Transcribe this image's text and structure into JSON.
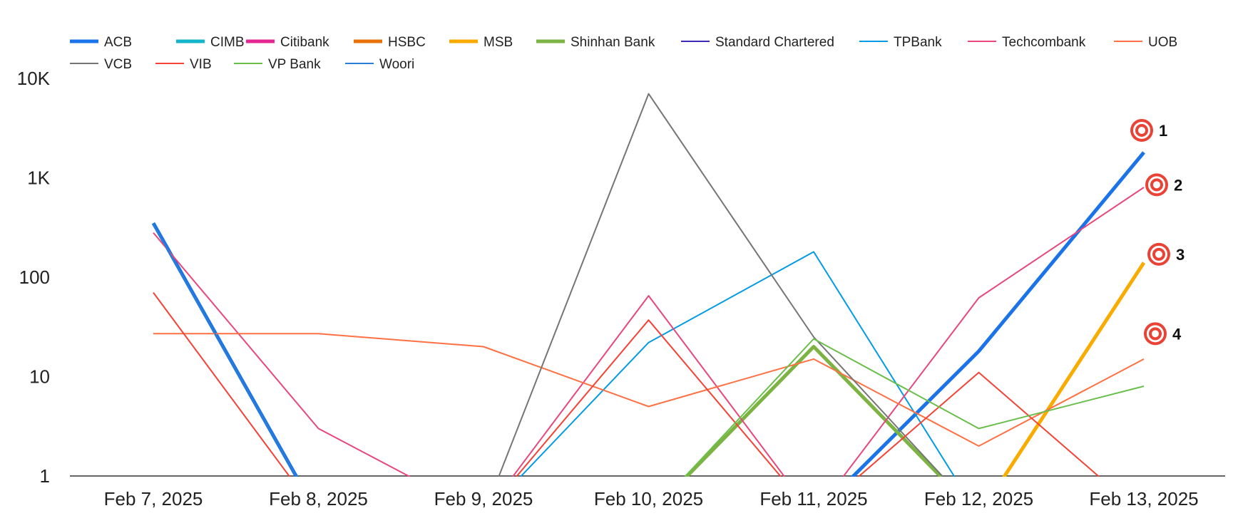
{
  "chart_data": {
    "type": "line",
    "title": "",
    "xlabel": "",
    "ylabel": "",
    "y_scale": "log",
    "ylim": [
      1,
      10000
    ],
    "y_ticks": [
      {
        "value": 1,
        "label": "1"
      },
      {
        "value": 10,
        "label": "10"
      },
      {
        "value": 100,
        "label": "100"
      },
      {
        "value": 1000,
        "label": "1K"
      },
      {
        "value": 10000,
        "label": "10K"
      }
    ],
    "categories": [
      "Feb 7, 2025",
      "Feb 8, 2025",
      "Feb 9, 2025",
      "Feb 10, 2025",
      "Feb 11, 2025",
      "Feb 12, 2025",
      "Feb 13, 2025"
    ],
    "legend_position": "top",
    "grid": false,
    "series": [
      {
        "name": "ACB",
        "color": "#1a73e8",
        "thick": true,
        "values": [
          350,
          0,
          0,
          0,
          0,
          18,
          1800
        ]
      },
      {
        "name": "CIMB",
        "color": "#12b5cb",
        "thick": true,
        "values": [
          0,
          0,
          0,
          0,
          0,
          0,
          0
        ]
      },
      {
        "name": "Citibank",
        "color": "#e52592",
        "thick": true,
        "values": [
          0,
          0,
          0,
          0,
          0,
          0,
          0
        ]
      },
      {
        "name": "HSBC",
        "color": "#e8710a",
        "thick": true,
        "values": [
          0,
          0,
          0,
          0,
          0,
          0,
          0
        ]
      },
      {
        "name": "MSB",
        "color": "#f9ab00",
        "thick": true,
        "values": [
          0,
          0,
          0,
          0,
          0,
          0,
          140
        ]
      },
      {
        "name": "Shinhan Bank",
        "color": "#7cb342",
        "thick": true,
        "values": [
          0,
          0,
          0,
          0,
          20,
          0,
          0
        ]
      },
      {
        "name": "Standard Chartered",
        "color": "#3b2ab8",
        "thick": false,
        "values": [
          0,
          0,
          0,
          0,
          0,
          0,
          0
        ]
      },
      {
        "name": "TPBank",
        "color": "#039be5",
        "thick": false,
        "values": [
          0,
          0,
          0,
          22,
          180,
          0,
          0
        ]
      },
      {
        "name": "Techcombank",
        "color": "#e8477e",
        "thick": false,
        "values": [
          280,
          3,
          0,
          65,
          0,
          62,
          800
        ]
      },
      {
        "name": "UOB",
        "color": "#ff7043",
        "thick": false,
        "values": [
          27,
          27,
          20,
          5,
          15,
          2,
          15
        ]
      },
      {
        "name": "VCB",
        "color": "#757575",
        "thick": false,
        "values": [
          0,
          0,
          0,
          7000,
          25,
          0,
          0
        ]
      },
      {
        "name": "VIB",
        "color": "#f44336",
        "thick": false,
        "values": [
          70,
          0,
          0,
          37,
          0,
          11,
          0
        ]
      },
      {
        "name": "VP Bank",
        "color": "#6abf4b",
        "thick": false,
        "values": [
          0,
          0,
          0,
          0,
          24,
          3,
          8
        ]
      },
      {
        "name": "Woori",
        "color": "#2a7fd4",
        "thick": false,
        "values": [
          340,
          0,
          0,
          0,
          0,
          0,
          0
        ]
      }
    ],
    "annotations": [
      {
        "label": "1",
        "value": 3000
      },
      {
        "label": "2",
        "value": 850
      },
      {
        "label": "3",
        "value": 170
      },
      {
        "label": "4",
        "value": 27
      }
    ]
  }
}
